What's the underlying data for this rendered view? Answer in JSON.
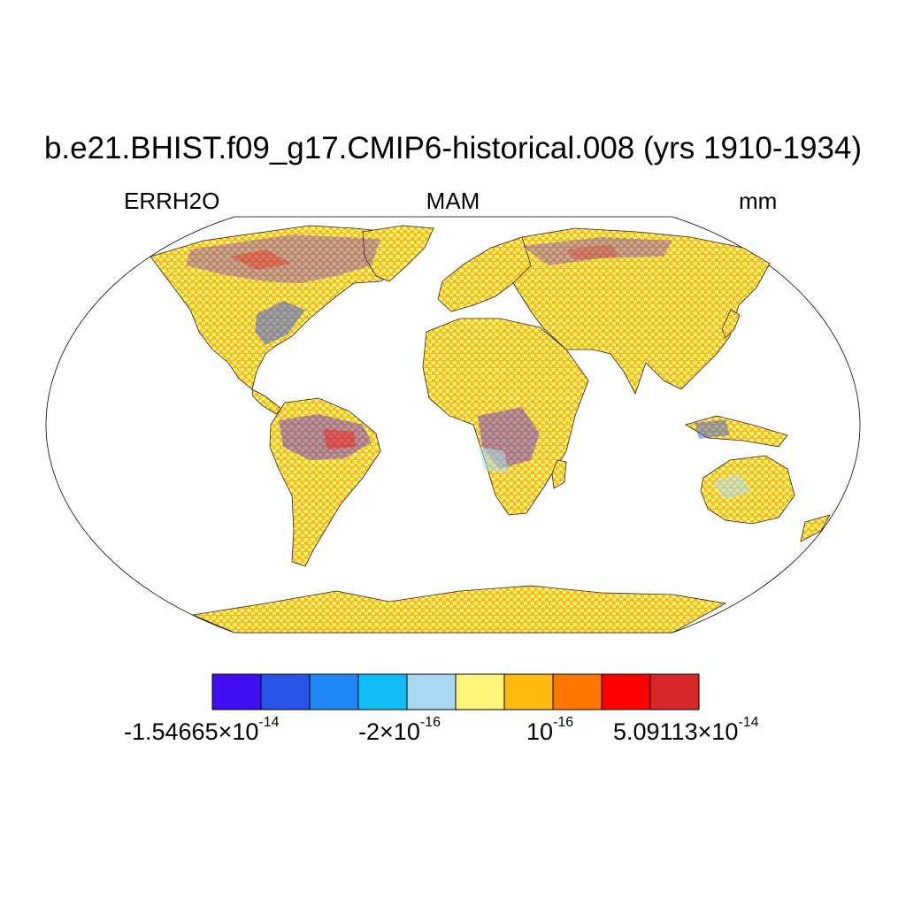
{
  "title": "b.e21.BHIST.f09_g17.CMIP6-historical.008 (yrs 1910-1934)",
  "variable": "ERRH2O",
  "season": "MAM",
  "units": "mm",
  "projection": "Robinson",
  "colorbar": {
    "colors": [
      "#3f0ff2",
      "#2a52e6",
      "#1f86f7",
      "#13bcf7",
      "#a6d8f2",
      "#fff47a",
      "#ffba12",
      "#ff7605",
      "#ff0000",
      "#d62828"
    ],
    "labels": [
      {
        "mant": "-1.54665",
        "times": "×",
        "base": "10",
        "exp": "-14"
      },
      {
        "mant": "-2",
        "times": "×",
        "base": "10",
        "exp": "-16"
      },
      {
        "mant": "",
        "times": "",
        "base": "10",
        "exp": "-16"
      },
      {
        "mant": "5.09113",
        "times": "×",
        "base": "10",
        "exp": "-14"
      }
    ]
  }
}
